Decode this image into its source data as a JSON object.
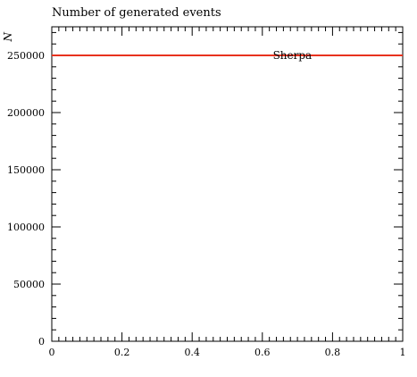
{
  "chart_data": {
    "type": "line",
    "title": "Number of generated events",
    "xlabel": "",
    "ylabel": "N",
    "xlim": [
      0,
      1
    ],
    "ylim": [
      0,
      275000
    ],
    "x_ticks": [
      0,
      0.2,
      0.4,
      0.6,
      0.8,
      1
    ],
    "x_tick_labels": [
      "0",
      "0.2",
      "0.4",
      "0.6",
      "0.8",
      "1"
    ],
    "y_ticks": [
      0,
      50000,
      100000,
      150000,
      200000,
      250000
    ],
    "y_tick_labels": [
      "0",
      "50000",
      "100000",
      "150000",
      "200000",
      "250000"
    ],
    "grid": false,
    "series": [
      {
        "name": "Sherpa",
        "color": "#e8321e",
        "x": [
          0,
          1
        ],
        "y": [
          250000,
          250000
        ]
      }
    ]
  }
}
